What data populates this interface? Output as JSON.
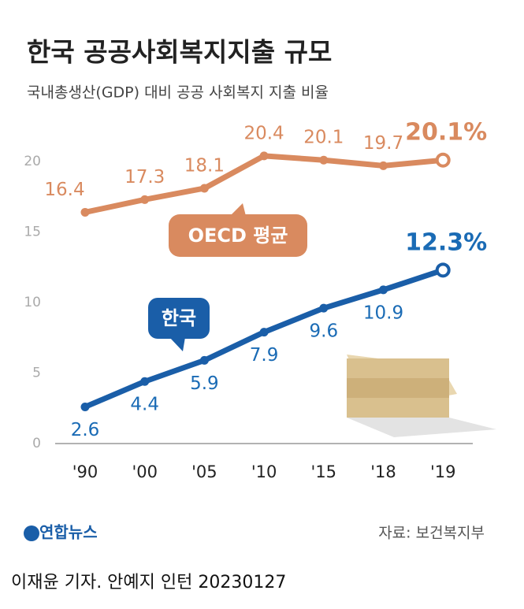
{
  "chart_data": {
    "type": "line",
    "title": "한국 공공사회복지지출 규모",
    "subtitle": "국내총생산(GDP) 대비 공공 사회복지 지출 비율",
    "categories": [
      "'90",
      "'00",
      "'05",
      "'10",
      "'15",
      "'18",
      "'19"
    ],
    "series": [
      {
        "name": "OECD 평균",
        "color": "#d98a5f",
        "values": [
          16.4,
          17.3,
          18.1,
          20.4,
          20.1,
          19.7,
          20.1
        ],
        "value_labels": [
          "16.4",
          "17.3",
          "18.1",
          "20.4",
          "20.1",
          "19.7",
          "20.1%"
        ]
      },
      {
        "name": "한국",
        "color": "#1a5ea8",
        "values": [
          2.6,
          4.4,
          5.9,
          7.9,
          9.6,
          10.9,
          12.3
        ],
        "value_labels": [
          "2.6",
          "4.4",
          "5.9",
          "7.9",
          "9.6",
          "10.9",
          "12.3%"
        ]
      }
    ],
    "ylim": [
      0,
      22
    ],
    "yticks": [
      0,
      5,
      10,
      15,
      20
    ],
    "grid": false,
    "source": "자료: 보건복지부",
    "logo": "연합뉴스",
    "credit": "이재윤 기자. 안예지 인턴  20230127"
  }
}
